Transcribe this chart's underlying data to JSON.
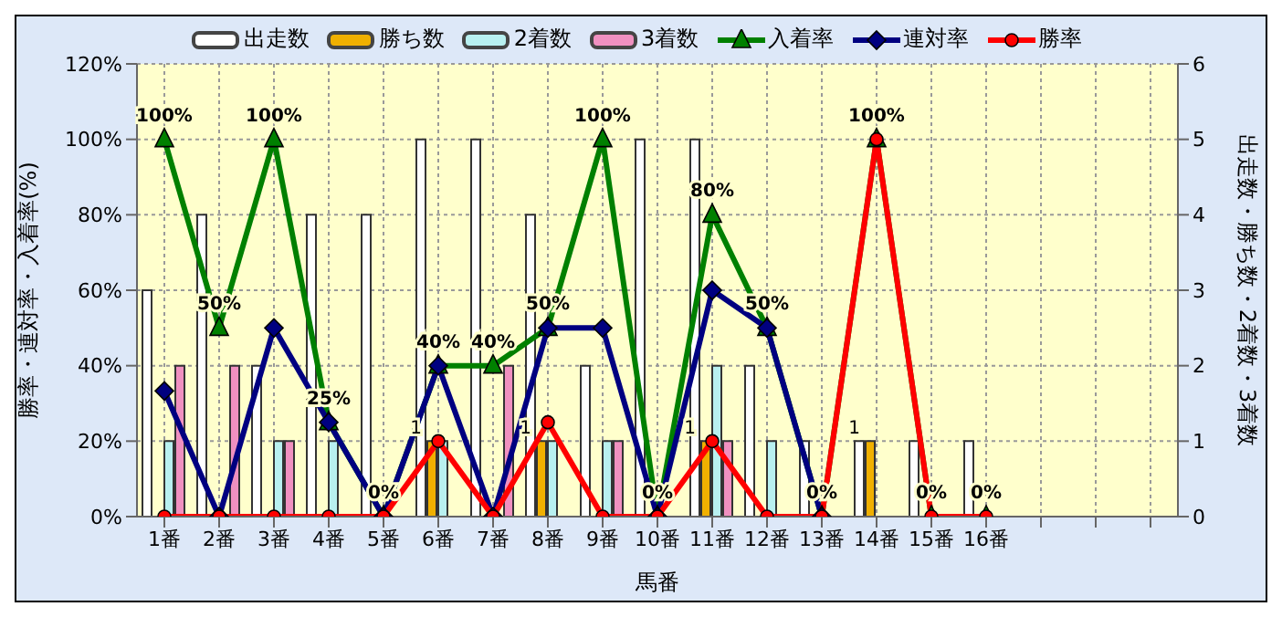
{
  "chart_data": {
    "type": "bar",
    "xlabel": "馬番",
    "ylabel": "勝率・連対率・入着率(%)",
    "y2label": "出走数・勝ち数・2着数・3着数",
    "categories": [
      "1番",
      "2番",
      "3番",
      "4番",
      "5番",
      "6番",
      "7番",
      "8番",
      "9番",
      "10番",
      "11番",
      "12番",
      "13番",
      "14番",
      "15番",
      "16番",
      null,
      null,
      null
    ],
    "series": [
      {
        "name": "出走数",
        "axis": "y2",
        "color": "#ffffff",
        "values": [
          3,
          4,
          2,
          4,
          4,
          5,
          5,
          4,
          2,
          5,
          5,
          2,
          1,
          1,
          1,
          1,
          null,
          null,
          null
        ]
      },
      {
        "name": "勝ち数",
        "axis": "y2",
        "color": "#f0b000",
        "values": [
          0,
          0,
          0,
          0,
          0,
          1,
          0,
          1,
          0,
          0,
          1,
          0,
          0,
          1,
          0,
          0,
          null,
          null,
          null
        ],
        "value_labels": [
          null,
          null,
          null,
          null,
          null,
          "1",
          null,
          "1",
          null,
          null,
          "1",
          null,
          null,
          "1",
          null,
          null,
          null,
          null,
          null
        ]
      },
      {
        "name": "2着数",
        "axis": "y2",
        "color": "#b8f0f0",
        "values": [
          1,
          0,
          1,
          1,
          0,
          1,
          0,
          1,
          1,
          0,
          2,
          1,
          0,
          0,
          0,
          0,
          null,
          null,
          null
        ]
      },
      {
        "name": "3着数",
        "axis": "y2",
        "color": "#f090c0",
        "values": [
          2,
          2,
          1,
          0,
          0,
          0,
          2,
          0,
          1,
          0,
          1,
          0,
          0,
          0,
          0,
          0,
          null,
          null,
          null
        ]
      },
      {
        "name": "入着率",
        "type": "line",
        "axis": "y",
        "color": "#008000",
        "marker": "triangle",
        "values": [
          100,
          50,
          100,
          25,
          0,
          40,
          40,
          50,
          100,
          0,
          80,
          50,
          0,
          100,
          0,
          0,
          null,
          null,
          null
        ],
        "value_labels": [
          "100%",
          "50%",
          "100%",
          "25%",
          "0%",
          "40%",
          "40%",
          "50%",
          "100%",
          "0%",
          "80%",
          "50%",
          "0%",
          "100%",
          "0%",
          "0%",
          null,
          null,
          null
        ]
      },
      {
        "name": "連対率",
        "type": "line",
        "axis": "y",
        "color": "#000080",
        "marker": "diamond",
        "values": [
          33.3,
          0,
          50,
          25,
          0,
          40,
          0,
          50,
          50,
          0,
          60,
          50,
          0,
          null,
          null,
          null,
          null,
          null,
          null
        ]
      },
      {
        "name": "勝率",
        "type": "line",
        "axis": "y",
        "color": "#ff0000",
        "marker": "circle",
        "values": [
          0,
          0,
          0,
          0,
          0,
          20,
          0,
          25,
          0,
          0,
          20,
          0,
          0,
          100,
          0,
          0,
          null,
          null,
          null
        ]
      }
    ],
    "ylim": [
      0,
      120
    ],
    "yticks": [
      {
        "value": 0,
        "label": "0%"
      },
      {
        "value": 20,
        "label": "20%"
      },
      {
        "value": 40,
        "label": "40%"
      },
      {
        "value": 60,
        "label": "60%"
      },
      {
        "value": 80,
        "label": "80%"
      },
      {
        "value": 100,
        "label": "100%"
      },
      {
        "value": 120,
        "label": "120%"
      }
    ],
    "y2lim": [
      0,
      6
    ],
    "y2ticks": [
      0,
      1,
      2,
      3,
      4,
      5,
      6
    ],
    "grid": true,
    "legend": "top"
  }
}
